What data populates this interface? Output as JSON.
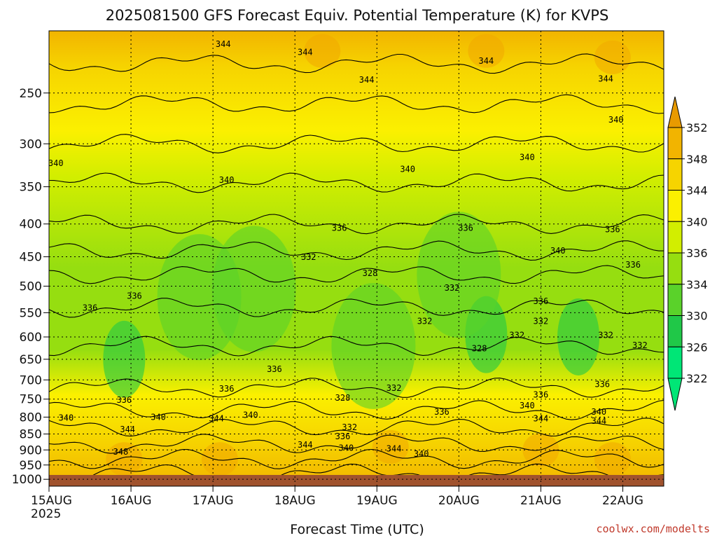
{
  "chart_data": {
    "type": "heatmap",
    "title": "2025081500 GFS Forecast Equiv. Potential Temperature (K) for KVPS",
    "xlabel": "Forecast Time (UTC)",
    "ylabel": "",
    "x_ticks": [
      {
        "label": "15AUG",
        "sub": "2025",
        "hours": 0
      },
      {
        "label": "16AUG",
        "sub": "",
        "hours": 24
      },
      {
        "label": "17AUG",
        "sub": "",
        "hours": 48
      },
      {
        "label": "18AUG",
        "sub": "",
        "hours": 72
      },
      {
        "label": "19AUG",
        "sub": "",
        "hours": 96
      },
      {
        "label": "20AUG",
        "sub": "",
        "hours": 120
      },
      {
        "label": "21AUG",
        "sub": "",
        "hours": 144
      },
      {
        "label": "22AUG",
        "sub": "",
        "hours": 168
      }
    ],
    "xlim_hours": [
      0,
      180
    ],
    "y_ticks": [
      250,
      300,
      350,
      400,
      450,
      500,
      550,
      600,
      650,
      700,
      750,
      800,
      850,
      900,
      950,
      1000
    ],
    "ylim": [
      200,
      1025
    ],
    "y_log": true,
    "grid": true,
    "colorbar": {
      "labels": [
        "352",
        "348",
        "344",
        "340",
        "336",
        "334",
        "330",
        "326",
        "322"
      ],
      "colors": [
        "#ffffff",
        "#e89a00",
        "#f2b400",
        "#f6d400",
        "#fbf000",
        "#d2ee00",
        "#96de10",
        "#5ad22a",
        "#20c848",
        "#00e676"
      ],
      "placement": "right"
    },
    "contour_labels": [
      {
        "text": "344",
        "hours": 51,
        "p": 212
      },
      {
        "text": "344",
        "hours": 75,
        "p": 218
      },
      {
        "text": "344",
        "hours": 93,
        "p": 241
      },
      {
        "text": "344",
        "hours": 128,
        "p": 225
      },
      {
        "text": "344",
        "hours": 163,
        "p": 240
      },
      {
        "text": "340",
        "hours": 2,
        "p": 325
      },
      {
        "text": "340",
        "hours": 166,
        "p": 278
      },
      {
        "text": "340",
        "hours": 52,
        "p": 345
      },
      {
        "text": "340",
        "hours": 105,
        "p": 332
      },
      {
        "text": "340",
        "hours": 140,
        "p": 318
      },
      {
        "text": "336",
        "hours": 85,
        "p": 410
      },
      {
        "text": "336",
        "hours": 122,
        "p": 410
      },
      {
        "text": "336",
        "hours": 165,
        "p": 412
      },
      {
        "text": "340",
        "hours": 149,
        "p": 445
      },
      {
        "text": "336",
        "hours": 171,
        "p": 468
      },
      {
        "text": "332",
        "hours": 76,
        "p": 455
      },
      {
        "text": "328",
        "hours": 94,
        "p": 482
      },
      {
        "text": "332",
        "hours": 118,
        "p": 508
      },
      {
        "text": "336",
        "hours": 25,
        "p": 523
      },
      {
        "text": "336",
        "hours": 12,
        "p": 546
      },
      {
        "text": "336",
        "hours": 144,
        "p": 533
      },
      {
        "text": "332",
        "hours": 144,
        "p": 573
      },
      {
        "text": "332",
        "hours": 110,
        "p": 573
      },
      {
        "text": "332",
        "hours": 137,
        "p": 602
      },
      {
        "text": "328",
        "hours": 126,
        "p": 632
      },
      {
        "text": "332",
        "hours": 163,
        "p": 602
      },
      {
        "text": "332",
        "hours": 173,
        "p": 625
      },
      {
        "text": "336",
        "hours": 66,
        "p": 680
      },
      {
        "text": "336",
        "hours": 52,
        "p": 730
      },
      {
        "text": "336",
        "hours": 22,
        "p": 760
      },
      {
        "text": "332",
        "hours": 101,
        "p": 728
      },
      {
        "text": "328",
        "hours": 86,
        "p": 754
      },
      {
        "text": "336",
        "hours": 144,
        "p": 746
      },
      {
        "text": "336",
        "hours": 162,
        "p": 718
      },
      {
        "text": "340",
        "hours": 140,
        "p": 775
      },
      {
        "text": "336",
        "hours": 115,
        "p": 793
      },
      {
        "text": "340",
        "hours": 161,
        "p": 793
      },
      {
        "text": "340",
        "hours": 5,
        "p": 810
      },
      {
        "text": "340",
        "hours": 32,
        "p": 808
      },
      {
        "text": "340",
        "hours": 59,
        "p": 802
      },
      {
        "text": "344",
        "hours": 49,
        "p": 812
      },
      {
        "text": "344",
        "hours": 144,
        "p": 812
      },
      {
        "text": "344",
        "hours": 161,
        "p": 820
      },
      {
        "text": "344",
        "hours": 23,
        "p": 845
      },
      {
        "text": "332",
        "hours": 88,
        "p": 838
      },
      {
        "text": "336",
        "hours": 86,
        "p": 866
      },
      {
        "text": "344",
        "hours": 75,
        "p": 893
      },
      {
        "text": "340",
        "hours": 87,
        "p": 903
      },
      {
        "text": "344",
        "hours": 101,
        "p": 905
      },
      {
        "text": "340",
        "hours": 109,
        "p": 922
      },
      {
        "text": "348",
        "hours": 21,
        "p": 915
      }
    ]
  },
  "credit": "coolwx.com/modelts"
}
